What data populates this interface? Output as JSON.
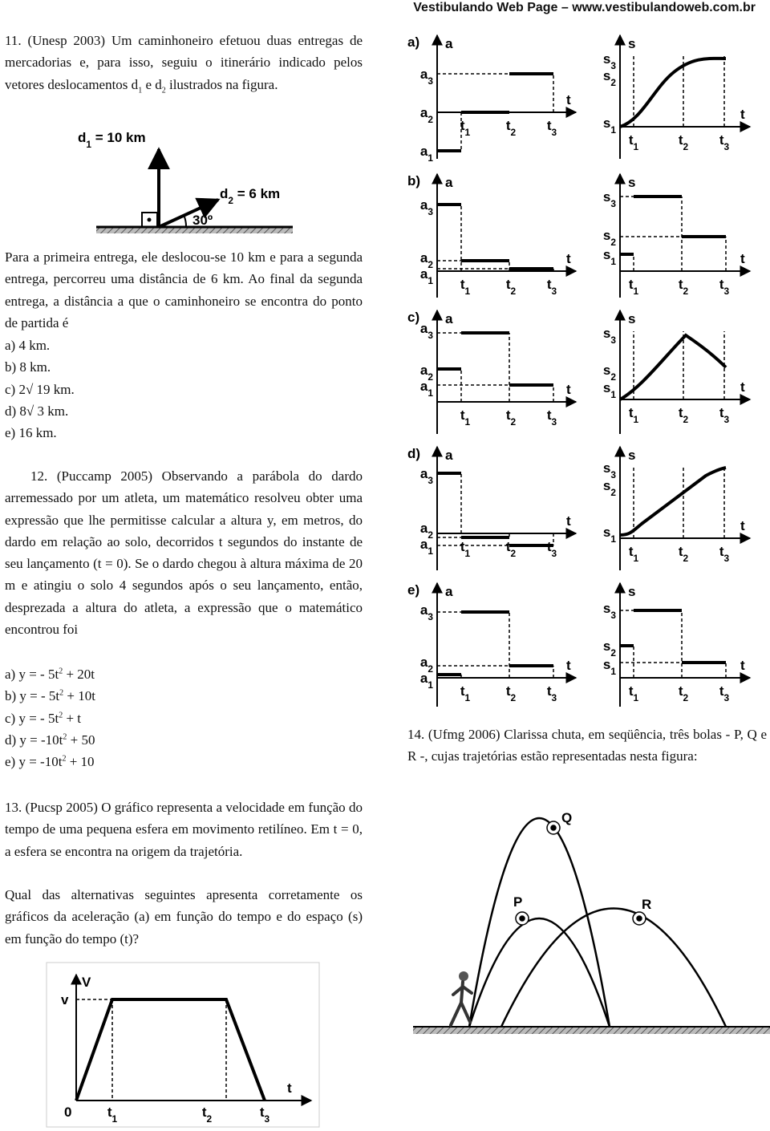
{
  "header": "Vestibulando Web Page – www.vestibulandoweb.com.br",
  "q11": {
    "text": [
      "11. (Unesp 2003) Um caminhoneiro efetuou duas entregas de mercadorias e, para isso, seguiu o itinerário indicado pelos vetores deslocamentos d",
      {
        "sub": "1"
      },
      " e d",
      {
        "sub": "2"
      },
      " ilustrados na figura."
    ],
    "figure": {
      "d1": [
        "d",
        {
          "sub": "1"
        },
        " = 10 km"
      ],
      "d2": [
        "d",
        {
          "sub": "2"
        },
        " = 6 km"
      ],
      "angle": "30º"
    },
    "text2": "Para a primeira entrega, ele deslocou-se 10 km e para a segunda entrega, percorreu uma distância de 6 km. Ao final da segunda entrega, a distância a que o caminhoneiro se encontra do ponto de partida é",
    "options": [
      "a) 4 km.",
      "b) 8 km.",
      "c) 2√ 19 km.",
      "d) 8√ 3 km.",
      "e) 16 km."
    ]
  },
  "q12": {
    "text": "12. (Puccamp 2005) Observando a parábola do dardo arremessado por um atleta, um matemático resolveu obter uma expressão que lhe permitisse calcular a altura y, em metros, do dardo em relação ao solo, decorridos t segundos do instante de seu lançamento (t = 0). Se o dardo chegou à altura máxima de 20 m e atingiu o solo 4 segundos após o seu lançamento, então, desprezada a altura do atleta, a expressão que o matemático encontrou foi",
    "options": [
      [
        "a) y = - 5t",
        {
          "sup": "2"
        },
        " + 20t"
      ],
      [
        "b) y = - 5t",
        {
          "sup": "2"
        },
        " + 10t"
      ],
      [
        "c) y = - 5t",
        {
          "sup": "2"
        },
        " + t"
      ],
      [
        "d) y = -10t",
        {
          "sup": "2"
        },
        " + 50"
      ],
      [
        "e) y = -10t",
        {
          "sup": "2"
        },
        " + 10"
      ]
    ]
  },
  "q13": {
    "text": "13. (Pucsp 2005) O gráfico representa a velocidade em função do tempo de uma pequena esfera em movimento retilíneo. Em t = 0, a esfera se encontra na origem da trajetória.",
    "text2": "Qual das alternativas seguintes apresenta corretamente os gráficos da aceleração (a) em função do tempo e do espaço (s) em função do tempo (t)?",
    "figure": {
      "y_axis": "V",
      "level": "v",
      "x_axis": "t",
      "origin": "0",
      "ticks": [
        [
          "t",
          {
            "sub": "1"
          }
        ],
        [
          "t",
          {
            "sub": "2"
          }
        ],
        [
          "t",
          {
            "sub": "3"
          }
        ]
      ]
    }
  },
  "answer_graphs": [
    {
      "letter": "a)",
      "accel": {
        "axis": "a",
        "levels": [
          [
            "a",
            {
              "sub": "3"
            }
          ],
          [
            "a",
            {
              "sub": "2"
            }
          ],
          [
            "a",
            {
              "sub": "1"
            }
          ]
        ],
        "x_axis": "t",
        "ticks": [
          [
            "t",
            {
              "sub": "1"
            }
          ],
          [
            "t",
            {
              "sub": "2"
            }
          ],
          [
            "t",
            {
              "sub": "3"
            }
          ]
        ]
      },
      "space": {
        "axis": "s",
        "levels": [
          [
            "s",
            {
              "sub": "3"
            }
          ],
          [
            "s",
            {
              "sub": "2"
            }
          ],
          [
            "s",
            {
              "sub": "1"
            }
          ]
        ],
        "x_axis": "t",
        "ticks": [
          [
            "t",
            {
              "sub": "1"
            }
          ],
          [
            "t",
            {
              "sub": "2"
            }
          ],
          [
            "t",
            {
              "sub": "3"
            }
          ]
        ]
      }
    },
    {
      "letter": "b)",
      "accel": {
        "axis": "a",
        "levels": [
          [
            "a",
            {
              "sub": "3"
            }
          ],
          [
            "a",
            {
              "sub": "2"
            }
          ],
          [
            "a",
            {
              "sub": "1"
            }
          ]
        ],
        "x_axis": "t",
        "ticks": [
          [
            "t",
            {
              "sub": "1"
            }
          ],
          [
            "t",
            {
              "sub": "2"
            }
          ],
          [
            "t",
            {
              "sub": "3"
            }
          ]
        ]
      },
      "space": {
        "axis": "s",
        "levels": [
          [
            "s",
            {
              "sub": "3"
            }
          ],
          [
            "s",
            {
              "sub": "2"
            }
          ],
          [
            "s",
            {
              "sub": "1"
            }
          ]
        ],
        "x_axis": "t",
        "ticks": [
          [
            "t",
            {
              "sub": "1"
            }
          ],
          [
            "t",
            {
              "sub": "2"
            }
          ],
          [
            "t",
            {
              "sub": "3"
            }
          ]
        ]
      }
    },
    {
      "letter": "c)",
      "accel": {
        "axis": "a",
        "levels": [
          [
            "a",
            {
              "sub": "3"
            }
          ],
          [
            "a",
            {
              "sub": "2"
            }
          ],
          [
            "a",
            {
              "sub": "1"
            }
          ]
        ],
        "x_axis": "t",
        "ticks": [
          [
            "t",
            {
              "sub": "1"
            }
          ],
          [
            "t",
            {
              "sub": "2"
            }
          ],
          [
            "t",
            {
              "sub": "3"
            }
          ]
        ]
      },
      "space": {
        "axis": "s",
        "levels": [
          [
            "s",
            {
              "sub": "3"
            }
          ],
          [
            "s",
            {
              "sub": "2"
            }
          ],
          [
            "s",
            {
              "sub": "1"
            }
          ]
        ],
        "x_axis": "t",
        "ticks": [
          [
            "t",
            {
              "sub": "1"
            }
          ],
          [
            "t",
            {
              "sub": "2"
            }
          ],
          [
            "t",
            {
              "sub": "3"
            }
          ]
        ]
      }
    },
    {
      "letter": "d)",
      "accel": {
        "axis": "a",
        "levels": [
          [
            "a",
            {
              "sub": "3"
            }
          ],
          [
            "a",
            {
              "sub": "2"
            }
          ],
          [
            "a",
            {
              "sub": "1"
            }
          ]
        ],
        "x_axis": "t",
        "ticks": [
          [
            "t",
            {
              "sub": "1"
            }
          ],
          [
            "t",
            {
              "sub": "2"
            }
          ],
          [
            "t",
            {
              "sub": "3"
            }
          ]
        ]
      },
      "space": {
        "axis": "s",
        "levels": [
          [
            "s",
            {
              "sub": "3"
            }
          ],
          [
            "s",
            {
              "sub": "2"
            }
          ],
          [
            "s",
            {
              "sub": "1"
            }
          ]
        ],
        "x_axis": "t",
        "ticks": [
          [
            "t",
            {
              "sub": "1"
            }
          ],
          [
            "t",
            {
              "sub": "2"
            }
          ],
          [
            "t",
            {
              "sub": "3"
            }
          ]
        ]
      }
    },
    {
      "letter": "e)",
      "accel": {
        "axis": "a",
        "levels": [
          [
            "a",
            {
              "sub": "3"
            }
          ],
          [
            "a",
            {
              "sub": "2"
            }
          ],
          [
            "a",
            {
              "sub": "1"
            }
          ]
        ],
        "x_axis": "t",
        "ticks": [
          [
            "t",
            {
              "sub": "1"
            }
          ],
          [
            "t",
            {
              "sub": "2"
            }
          ],
          [
            "t",
            {
              "sub": "3"
            }
          ]
        ]
      },
      "space": {
        "axis": "s",
        "levels": [
          [
            "s",
            {
              "sub": "3"
            }
          ],
          [
            "s",
            {
              "sub": "2"
            }
          ],
          [
            "s",
            {
              "sub": "1"
            }
          ]
        ],
        "x_axis": "t",
        "ticks": [
          [
            "t",
            {
              "sub": "1"
            }
          ],
          [
            "t",
            {
              "sub": "2"
            }
          ],
          [
            "t",
            {
              "sub": "3"
            }
          ]
        ]
      }
    }
  ],
  "q14": {
    "text": "14. (Ufmg 2006) Clarissa chuta, em seqüência, três bolas - P, Q e R -, cujas trajetórias estão representadas nesta figura:",
    "figure": {
      "labels": [
        "Q",
        "P",
        "R"
      ]
    }
  }
}
